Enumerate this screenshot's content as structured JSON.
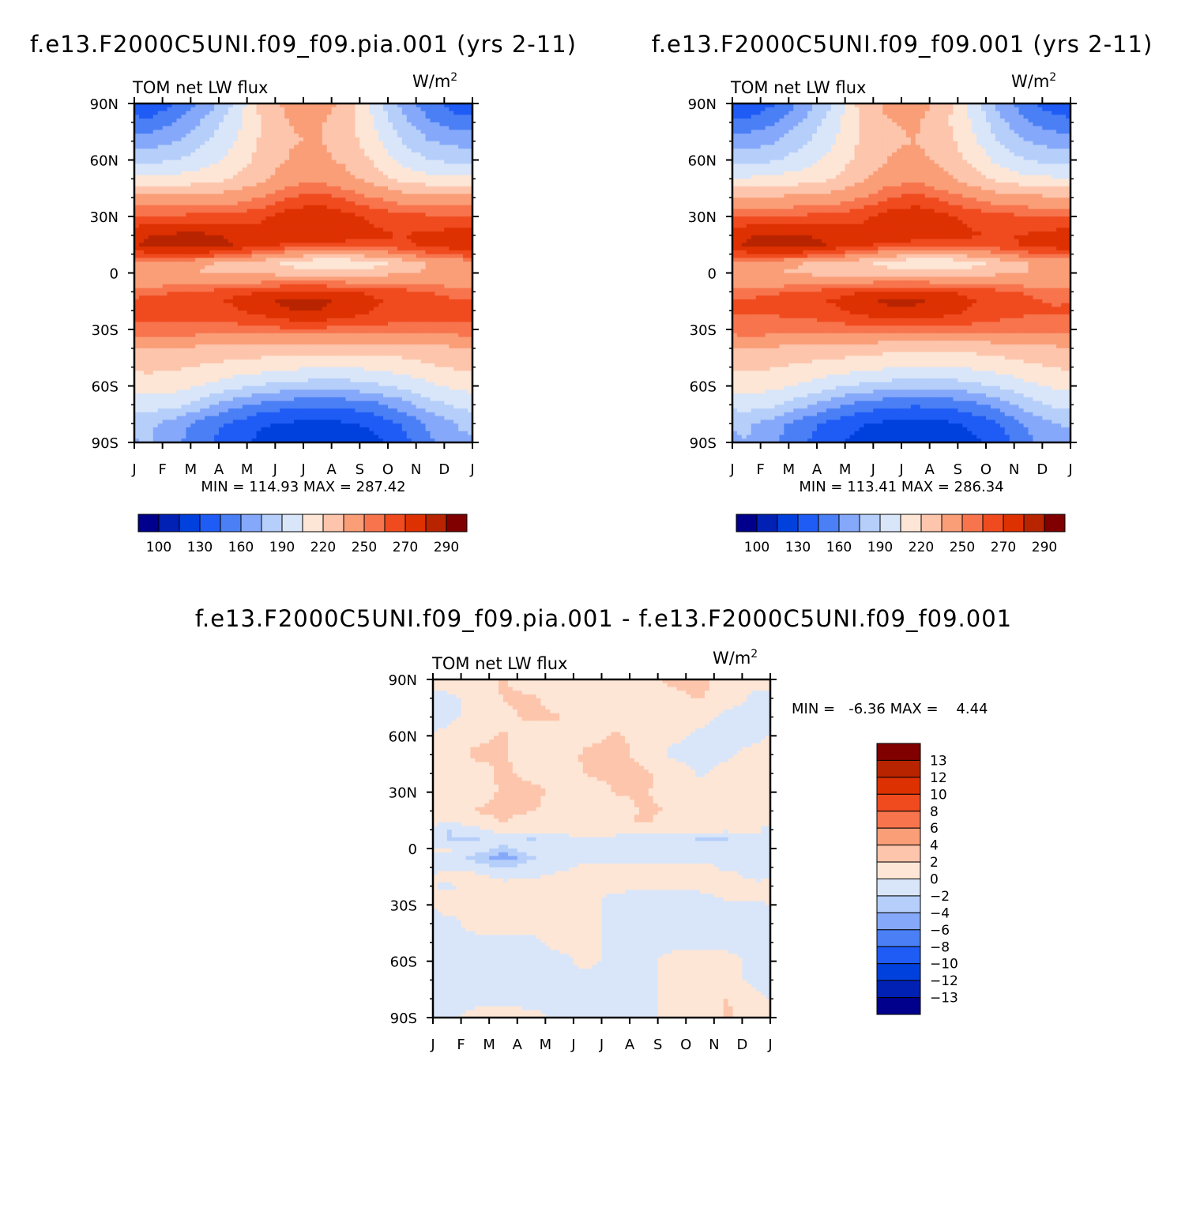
{
  "palette": [
    "#00008c",
    "#0021b3",
    "#0040dc",
    "#1f5cf5",
    "#4a7ff5",
    "#85a8fa",
    "#b5cefa",
    "#d9e6fa",
    "#fde6d6",
    "#fdc5ac",
    "#fa9e78",
    "#f7744d",
    "#f04b1f",
    "#de3102",
    "#b82400",
    "#800000"
  ],
  "chart_data": [
    {
      "type": "heatmap",
      "title": "f.e13.F2000C5UNI.f09_f09.pia.001 (yrs 2-11)",
      "variable": "TOM net LW flux",
      "units": "W/m",
      "units_exponent": "2",
      "xticks": [
        "J",
        "F",
        "M",
        "A",
        "M",
        "J",
        "J",
        "A",
        "S",
        "O",
        "N",
        "D",
        "J"
      ],
      "yticks": [
        "90N",
        "60N",
        "30N",
        "0",
        "30S",
        "60S",
        "90S"
      ],
      "stats": "MIN = 114.93 MAX = 287.42",
      "min": 114.93,
      "max": 287.42,
      "colorbar_labels": [
        "100",
        "130",
        "160",
        "190",
        "220",
        "250",
        "270",
        "290"
      ],
      "lat": [
        90,
        80,
        70,
        60,
        50,
        40,
        30,
        20,
        15,
        10,
        5,
        0,
        -5,
        -10,
        -15,
        -20,
        -25,
        -30,
        -40,
        -50,
        -60,
        -70,
        -80,
        -90
      ],
      "months": [
        "Jan",
        "Feb",
        "Mar",
        "Apr",
        "May",
        "Jun",
        "Jul",
        "Aug",
        "Sep",
        "Oct",
        "Nov",
        "Dec"
      ],
      "values": [
        [
          130,
          145,
          165,
          190,
          225,
          240,
          245,
          230,
          200,
          170,
          150,
          135
        ],
        [
          150,
          160,
          178,
          198,
          220,
          235,
          238,
          225,
          205,
          180,
          162,
          152
        ],
        [
          168,
          175,
          188,
          203,
          222,
          234,
          236,
          228,
          210,
          190,
          175,
          170
        ],
        [
          185,
          190,
          198,
          210,
          225,
          236,
          240,
          232,
          218,
          200,
          190,
          186
        ],
        [
          208,
          210,
          214,
          220,
          232,
          244,
          248,
          240,
          228,
          216,
          210,
          208
        ],
        [
          238,
          238,
          240,
          243,
          250,
          260,
          265,
          258,
          250,
          243,
          240,
          238
        ],
        [
          262,
          262,
          263,
          264,
          268,
          276,
          278,
          274,
          268,
          264,
          262,
          262
        ],
        [
          280,
          282,
          282,
          278,
          275,
          278,
          278,
          276,
          272,
          270,
          272,
          275
        ],
        [
          282,
          286,
          285,
          280,
          274,
          268,
          266,
          266,
          266,
          268,
          272,
          276
        ],
        [
          268,
          270,
          268,
          262,
          252,
          244,
          238,
          238,
          242,
          250,
          258,
          264
        ],
        [
          242,
          240,
          236,
          232,
          226,
          216,
          206,
          206,
          214,
          226,
          236,
          240
        ],
        [
          236,
          236,
          234,
          232,
          232,
          230,
          226,
          226,
          230,
          234,
          236,
          236
        ],
        [
          244,
          244,
          246,
          248,
          250,
          252,
          252,
          250,
          248,
          246,
          244,
          244
        ],
        [
          258,
          260,
          262,
          266,
          270,
          274,
          274,
          272,
          268,
          264,
          260,
          258
        ],
        [
          262,
          264,
          266,
          272,
          278,
          282,
          282,
          278,
          272,
          266,
          262,
          260
        ],
        [
          262,
          262,
          264,
          268,
          274,
          280,
          280,
          276,
          270,
          264,
          262,
          262
        ],
        [
          260,
          260,
          260,
          262,
          266,
          270,
          271,
          268,
          264,
          261,
          260,
          260
        ],
        [
          258,
          258,
          257,
          256,
          257,
          258,
          258,
          256,
          256,
          256,
          256,
          257
        ],
        [
          236,
          234,
          232,
          230,
          228,
          226,
          226,
          226,
          226,
          228,
          230,
          234
        ],
        [
          224,
          222,
          218,
          214,
          212,
          208,
          206,
          206,
          208,
          212,
          218,
          222
        ],
        [
          212,
          210,
          204,
          196,
          188,
          184,
          182,
          182,
          186,
          194,
          202,
          208
        ],
        [
          198,
          194,
          180,
          166,
          156,
          150,
          148,
          150,
          156,
          168,
          184,
          194
        ],
        [
          178,
          168,
          152,
          142,
          132,
          128,
          126,
          128,
          134,
          146,
          164,
          176
        ],
        [
          176,
          162,
          148,
          136,
          126,
          120,
          116,
          118,
          126,
          138,
          158,
          172
        ]
      ]
    },
    {
      "type": "heatmap",
      "title": "f.e13.F2000C5UNI.f09_f09.001 (yrs 2-11)",
      "variable": "TOM net LW flux",
      "units": "W/m",
      "units_exponent": "2",
      "xticks": [
        "J",
        "F",
        "M",
        "A",
        "M",
        "J",
        "J",
        "A",
        "S",
        "O",
        "N",
        "D",
        "J"
      ],
      "yticks": [
        "90N",
        "60N",
        "30N",
        "0",
        "30S",
        "60S",
        "90S"
      ],
      "stats": "MIN = 113.41 MAX = 286.34",
      "min": 113.41,
      "max": 286.34,
      "colorbar_labels": [
        "100",
        "130",
        "160",
        "190",
        "220",
        "250",
        "270",
        "290"
      ],
      "lat": [
        90,
        80,
        70,
        60,
        50,
        40,
        30,
        20,
        15,
        10,
        5,
        0,
        -5,
        -10,
        -15,
        -20,
        -25,
        -30,
        -40,
        -50,
        -60,
        -70,
        -80,
        -90
      ],
      "months": [
        "Jan",
        "Feb",
        "Mar",
        "Apr",
        "May",
        "Jun",
        "Jul",
        "Aug",
        "Sep",
        "Oct",
        "Nov",
        "Dec"
      ],
      "values": [
        [
          129,
          144,
          164,
          189,
          224,
          239,
          244,
          229,
          199,
          169,
          149,
          134
        ],
        [
          149,
          159,
          177,
          197,
          219,
          234,
          237,
          224,
          204,
          179,
          161,
          151
        ],
        [
          167,
          174,
          187,
          202,
          221,
          233,
          235,
          227,
          209,
          189,
          174,
          169
        ],
        [
          184,
          189,
          197,
          209,
          224,
          235,
          239,
          231,
          217,
          199,
          189,
          185
        ],
        [
          207,
          209,
          213,
          219,
          231,
          243,
          247,
          239,
          227,
          215,
          209,
          207
        ],
        [
          237,
          237,
          239,
          242,
          249,
          259,
          264,
          257,
          249,
          242,
          239,
          237
        ],
        [
          261,
          261,
          262,
          263,
          267,
          275,
          277,
          273,
          267,
          263,
          261,
          261
        ],
        [
          279,
          281,
          281,
          277,
          274,
          277,
          277,
          275,
          271,
          269,
          271,
          274
        ],
        [
          281,
          285,
          284,
          279,
          273,
          267,
          265,
          265,
          265,
          267,
          271,
          275
        ],
        [
          267,
          269,
          267,
          261,
          251,
          243,
          237,
          237,
          241,
          249,
          257,
          263
        ],
        [
          241,
          239,
          235,
          231,
          225,
          215,
          205,
          205,
          213,
          225,
          235,
          239
        ],
        [
          235,
          235,
          233,
          231,
          231,
          229,
          225,
          225,
          229,
          233,
          235,
          235
        ],
        [
          243,
          243,
          245,
          247,
          249,
          251,
          251,
          249,
          247,
          245,
          243,
          243
        ],
        [
          257,
          259,
          261,
          265,
          269,
          273,
          273,
          271,
          267,
          263,
          259,
          257
        ],
        [
          261,
          263,
          265,
          271,
          277,
          281,
          281,
          277,
          271,
          265,
          261,
          259
        ],
        [
          261,
          261,
          263,
          267,
          273,
          279,
          279,
          275,
          269,
          263,
          261,
          261
        ],
        [
          259,
          259,
          259,
          261,
          265,
          269,
          270,
          267,
          263,
          260,
          259,
          259
        ],
        [
          257,
          257,
          256,
          255,
          256,
          257,
          257,
          255,
          255,
          255,
          255,
          256
        ],
        [
          235,
          233,
          231,
          229,
          227,
          225,
          225,
          225,
          225,
          227,
          229,
          233
        ],
        [
          223,
          221,
          217,
          213,
          211,
          207,
          205,
          205,
          207,
          211,
          217,
          221
        ],
        [
          211,
          209,
          203,
          195,
          187,
          183,
          181,
          181,
          185,
          193,
          201,
          207
        ],
        [
          197,
          193,
          179,
          165,
          155,
          149,
          147,
          149,
          155,
          167,
          183,
          193
        ],
        [
          177,
          167,
          151,
          141,
          131,
          127,
          125,
          127,
          133,
          145,
          163,
          175
        ],
        [
          175,
          161,
          147,
          135,
          125,
          119,
          115,
          117,
          125,
          137,
          157,
          171
        ]
      ]
    },
    {
      "type": "heatmap",
      "title": "f.e13.F2000C5UNI.f09_f09.pia.001 - f.e13.F2000C5UNI.f09_f09.001",
      "variable": "TOM net LW flux",
      "units": "W/m",
      "units_exponent": "2",
      "xticks": [
        "J",
        "F",
        "M",
        "A",
        "M",
        "J",
        "J",
        "A",
        "S",
        "O",
        "N",
        "D",
        "J"
      ],
      "yticks": [
        "90N",
        "60N",
        "30N",
        "0",
        "30S",
        "60S",
        "90S"
      ],
      "stats": "MIN =   -6.36 MAX =    4.44",
      "min": -6.36,
      "max": 4.44,
      "colorbar_labels": [
        "13",
        "12",
        "10",
        "8",
        "6",
        "4",
        "2",
        "0",
        "-2",
        "-4",
        "-6",
        "-8",
        "-10",
        "-12",
        "-13"
      ],
      "lat": [
        90,
        80,
        70,
        60,
        50,
        40,
        30,
        20,
        15,
        10,
        5,
        0,
        -5,
        -10,
        -15,
        -20,
        -25,
        -30,
        -40,
        -50,
        -60,
        -70,
        -80,
        -90
      ],
      "months": [
        "Jan",
        "Feb",
        "Mar",
        "Apr",
        "May",
        "Jun",
        "Jul",
        "Aug",
        "Sep",
        "Oct",
        "Nov",
        "Dec"
      ],
      "values": [
        [
          1.0,
          0.5,
          2.2,
          1.0,
          0.8,
          0.5,
          0.6,
          0.9,
          2.5,
          2.6,
          0.8,
          0.5
        ],
        [
          -0.5,
          0.6,
          2.1,
          2.3,
          1.0,
          0.6,
          0.8,
          1.0,
          1.4,
          2.2,
          0.9,
          -0.4
        ],
        [
          -0.6,
          0.8,
          1.5,
          2.4,
          2.2,
          0.9,
          1.2,
          0.8,
          0.7,
          0.8,
          -0.6,
          -0.8
        ],
        [
          0.6,
          1.4,
          2.2,
          1.0,
          0.8,
          1.1,
          2.3,
          1.4,
          0.5,
          -0.5,
          -0.7,
          -0.3
        ],
        [
          0.4,
          2.5,
          2.3,
          0.8,
          0.6,
          2.6,
          2.8,
          1.2,
          -0.4,
          -0.6,
          -0.2,
          0.5
        ],
        [
          0.6,
          0.9,
          2.4,
          1.5,
          0.8,
          2.2,
          2.5,
          2.4,
          1.2,
          -0.3,
          0.6,
          0.8
        ],
        [
          0.7,
          1.0,
          2.3,
          2.6,
          1.5,
          0.9,
          2.1,
          2.3,
          1.0,
          0.8,
          1.0,
          0.6
        ],
        [
          0.8,
          2.1,
          2.5,
          2.2,
          0.9,
          0.8,
          1.0,
          2.2,
          2.0,
          1.1,
          0.9,
          2.2
        ],
        [
          0.6,
          1.0,
          2.2,
          0.9,
          0.8,
          0.8,
          1.2,
          2.4,
          0.9,
          0.7,
          0.8,
          1.0
        ],
        [
          -2.2,
          -0.4,
          0.5,
          0.7,
          0.5,
          0.8,
          0.6,
          0.5,
          0.6,
          0.8,
          0.5,
          0.4
        ],
        [
          -2.1,
          -2.3,
          -0.6,
          -2.2,
          -0.5,
          -0.3,
          -0.4,
          -0.5,
          -0.6,
          -2.2,
          -2.1,
          -0.5
        ],
        [
          0.5,
          -0.8,
          -2.5,
          -0.6,
          -0.4,
          -0.5,
          -0.7,
          -0.6,
          -2.2,
          -0.6,
          -0.5,
          -0.3
        ],
        [
          -0.6,
          -2.6,
          -5.5,
          -2.4,
          -0.8,
          -0.5,
          -0.6,
          -0.7,
          -0.5,
          -0.6,
          -0.4,
          -0.5
        ],
        [
          -0.5,
          -0.9,
          -2.2,
          -0.8,
          -0.6,
          0.5,
          0.6,
          0.5,
          0.7,
          0.6,
          -0.4,
          -0.6
        ],
        [
          0.7,
          0.6,
          -0.5,
          -0.4,
          0.6,
          0.8,
          0.9,
          0.7,
          0.6,
          0.5,
          0.6,
          -0.5
        ],
        [
          -0.4,
          0.6,
          0.7,
          0.9,
          1.0,
          0.8,
          0.7,
          0.6,
          0.5,
          0.7,
          0.8,
          0.6
        ],
        [
          0.5,
          0.5,
          0.6,
          0.7,
          0.8,
          0.6,
          -0.4,
          -0.5,
          -0.6,
          -0.5,
          0.5,
          0.6
        ],
        [
          0.6,
          0.4,
          0.5,
          0.6,
          0.7,
          0.5,
          -0.6,
          -0.7,
          -0.8,
          -0.6,
          -0.5,
          -0.4
        ],
        [
          -0.5,
          0.5,
          0.6,
          0.7,
          0.6,
          0.5,
          -0.5,
          -0.6,
          -0.5,
          -0.4,
          -0.6,
          -0.5
        ],
        [
          -0.6,
          -0.5,
          -0.6,
          -0.4,
          0.5,
          0.6,
          -0.5,
          -0.7,
          -0.6,
          -0.4,
          -0.5,
          -0.6
        ],
        [
          -0.7,
          -0.6,
          -0.5,
          -0.6,
          -0.5,
          0.5,
          -0.6,
          -0.5,
          0.6,
          0.8,
          0.6,
          -0.5
        ],
        [
          -0.5,
          -0.6,
          -0.7,
          -0.6,
          -0.8,
          -0.5,
          -0.7,
          -0.6,
          0.6,
          0.9,
          0.8,
          -0.6
        ],
        [
          -0.6,
          -0.5,
          -0.4,
          -0.6,
          -0.5,
          -0.6,
          -2.1,
          -0.5,
          0.5,
          1.0,
          2.1,
          0.5
        ],
        [
          -0.5,
          0.5,
          0.6,
          0.5,
          -0.4,
          -0.5,
          -0.6,
          -0.4,
          0.5,
          0.9,
          2.2,
          0.6
        ]
      ]
    }
  ]
}
